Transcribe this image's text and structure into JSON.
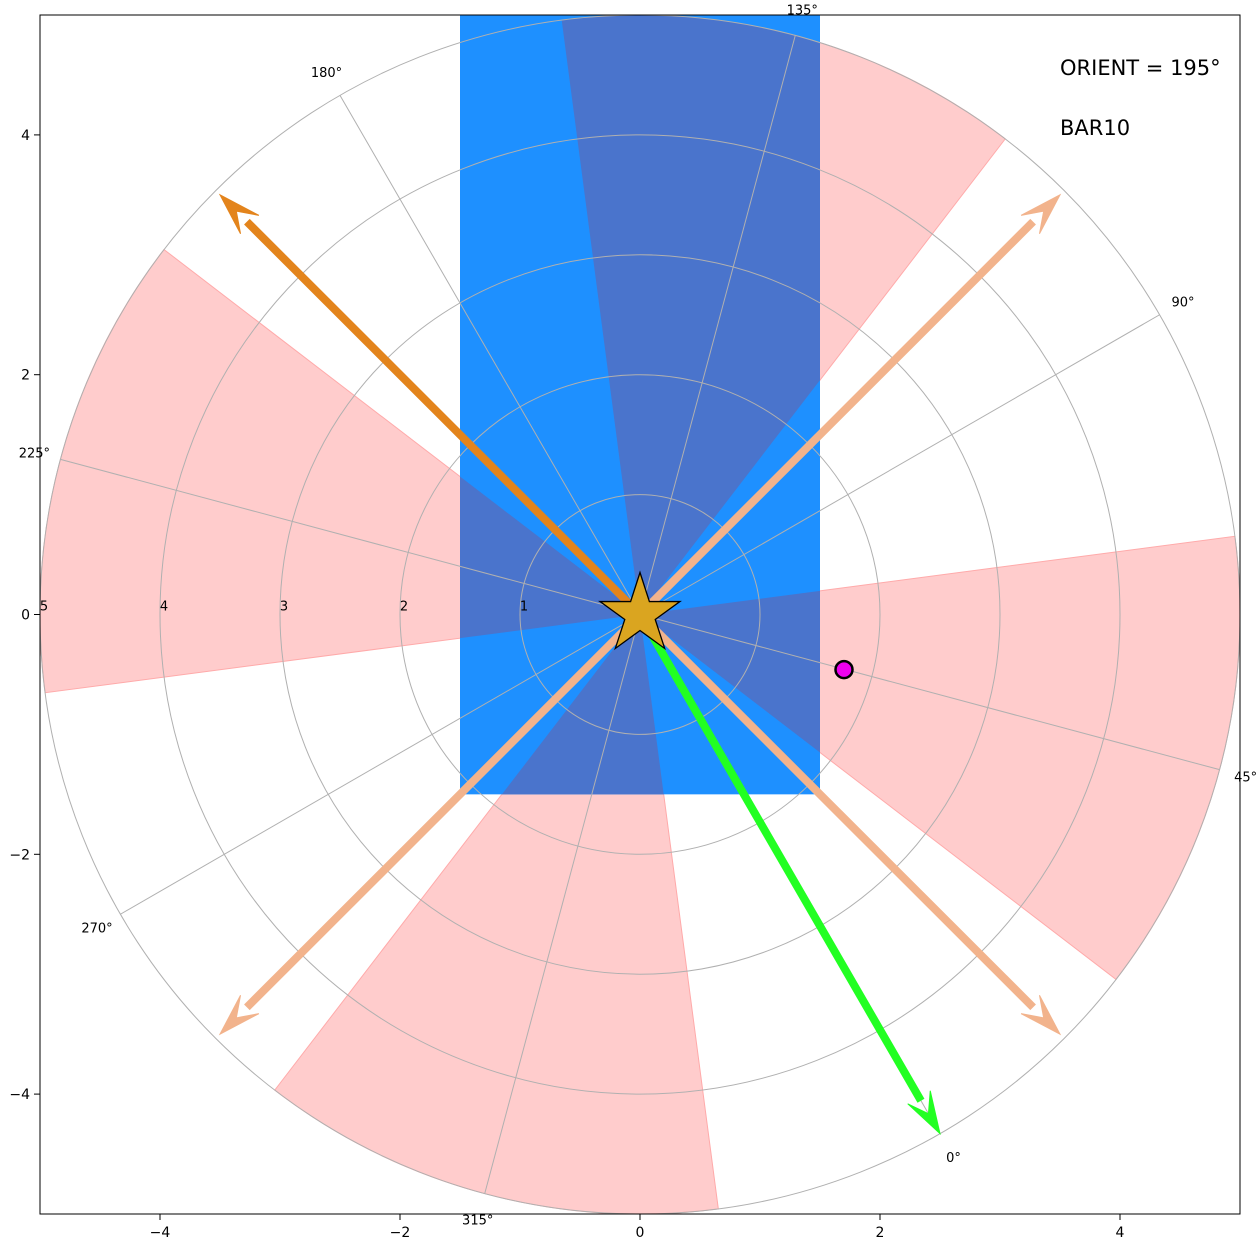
{
  "chart_data": {
    "type": "polar",
    "annotations": [
      "ORIENT = 195°",
      "BAR10"
    ],
    "x_ticks": [
      "−4",
      "−2",
      "0",
      "2",
      "4"
    ],
    "y_ticks": [
      "4",
      "2",
      "0",
      "−2",
      "−4"
    ],
    "xlim": [
      -5,
      5
    ],
    "ylim": [
      -5,
      5
    ],
    "x_tick_values": [
      -4,
      -2,
      0,
      2,
      4
    ],
    "y_tick_values": [
      4,
      2,
      0,
      -2,
      -4
    ],
    "radial_max": 5,
    "radial_values": [
      1,
      2,
      3,
      4,
      5
    ],
    "radial_labels": [
      "1",
      "2",
      "3",
      "4",
      "5"
    ],
    "polar_zero_deg_offset": 300,
    "angle_values": [
      0,
      45,
      90,
      135,
      180,
      225,
      270,
      315
    ],
    "angle_labels": [
      "0°",
      "45°",
      "90°",
      "135°",
      "180°",
      "225°",
      "270°",
      "315°"
    ],
    "bar_rect": {
      "x": [
        -1.5,
        1.5
      ],
      "y": [
        -1.5,
        5
      ],
      "color": "#1e90ff"
    },
    "sectors": [
      {
        "center_deg": 45,
        "half_width_deg": 22.5,
        "r": 5,
        "color": "#ffcccc"
      },
      {
        "center_deg": 135,
        "half_width_deg": 22.5,
        "r": 5,
        "color": "#ffcccc"
      },
      {
        "center_deg": 225,
        "half_width_deg": 22.5,
        "r": 5,
        "color": "#ffcccc"
      },
      {
        "center_deg": 315,
        "half_width_deg": 22.5,
        "r": 5,
        "color": "#ffcccc"
      }
    ],
    "arrows": [
      {
        "dx": -3.5,
        "dy": 3.5,
        "color": "#e3841c"
      },
      {
        "dx": 3.5,
        "dy": 3.5,
        "color": "#f2b38c"
      },
      {
        "dx": -3.5,
        "dy": -3.5,
        "color": "#f2b38c"
      },
      {
        "dx": 3.5,
        "dy": -3.5,
        "color": "#f2b38c"
      },
      {
        "dx": 2.5,
        "dy": -4.33,
        "color": "#22ff22"
      }
    ],
    "star": {
      "x": 0,
      "y": 0,
      "color": "#daa520"
    },
    "marker": {
      "x": 1.7,
      "y": -0.46,
      "color": "#ee00ee"
    }
  }
}
